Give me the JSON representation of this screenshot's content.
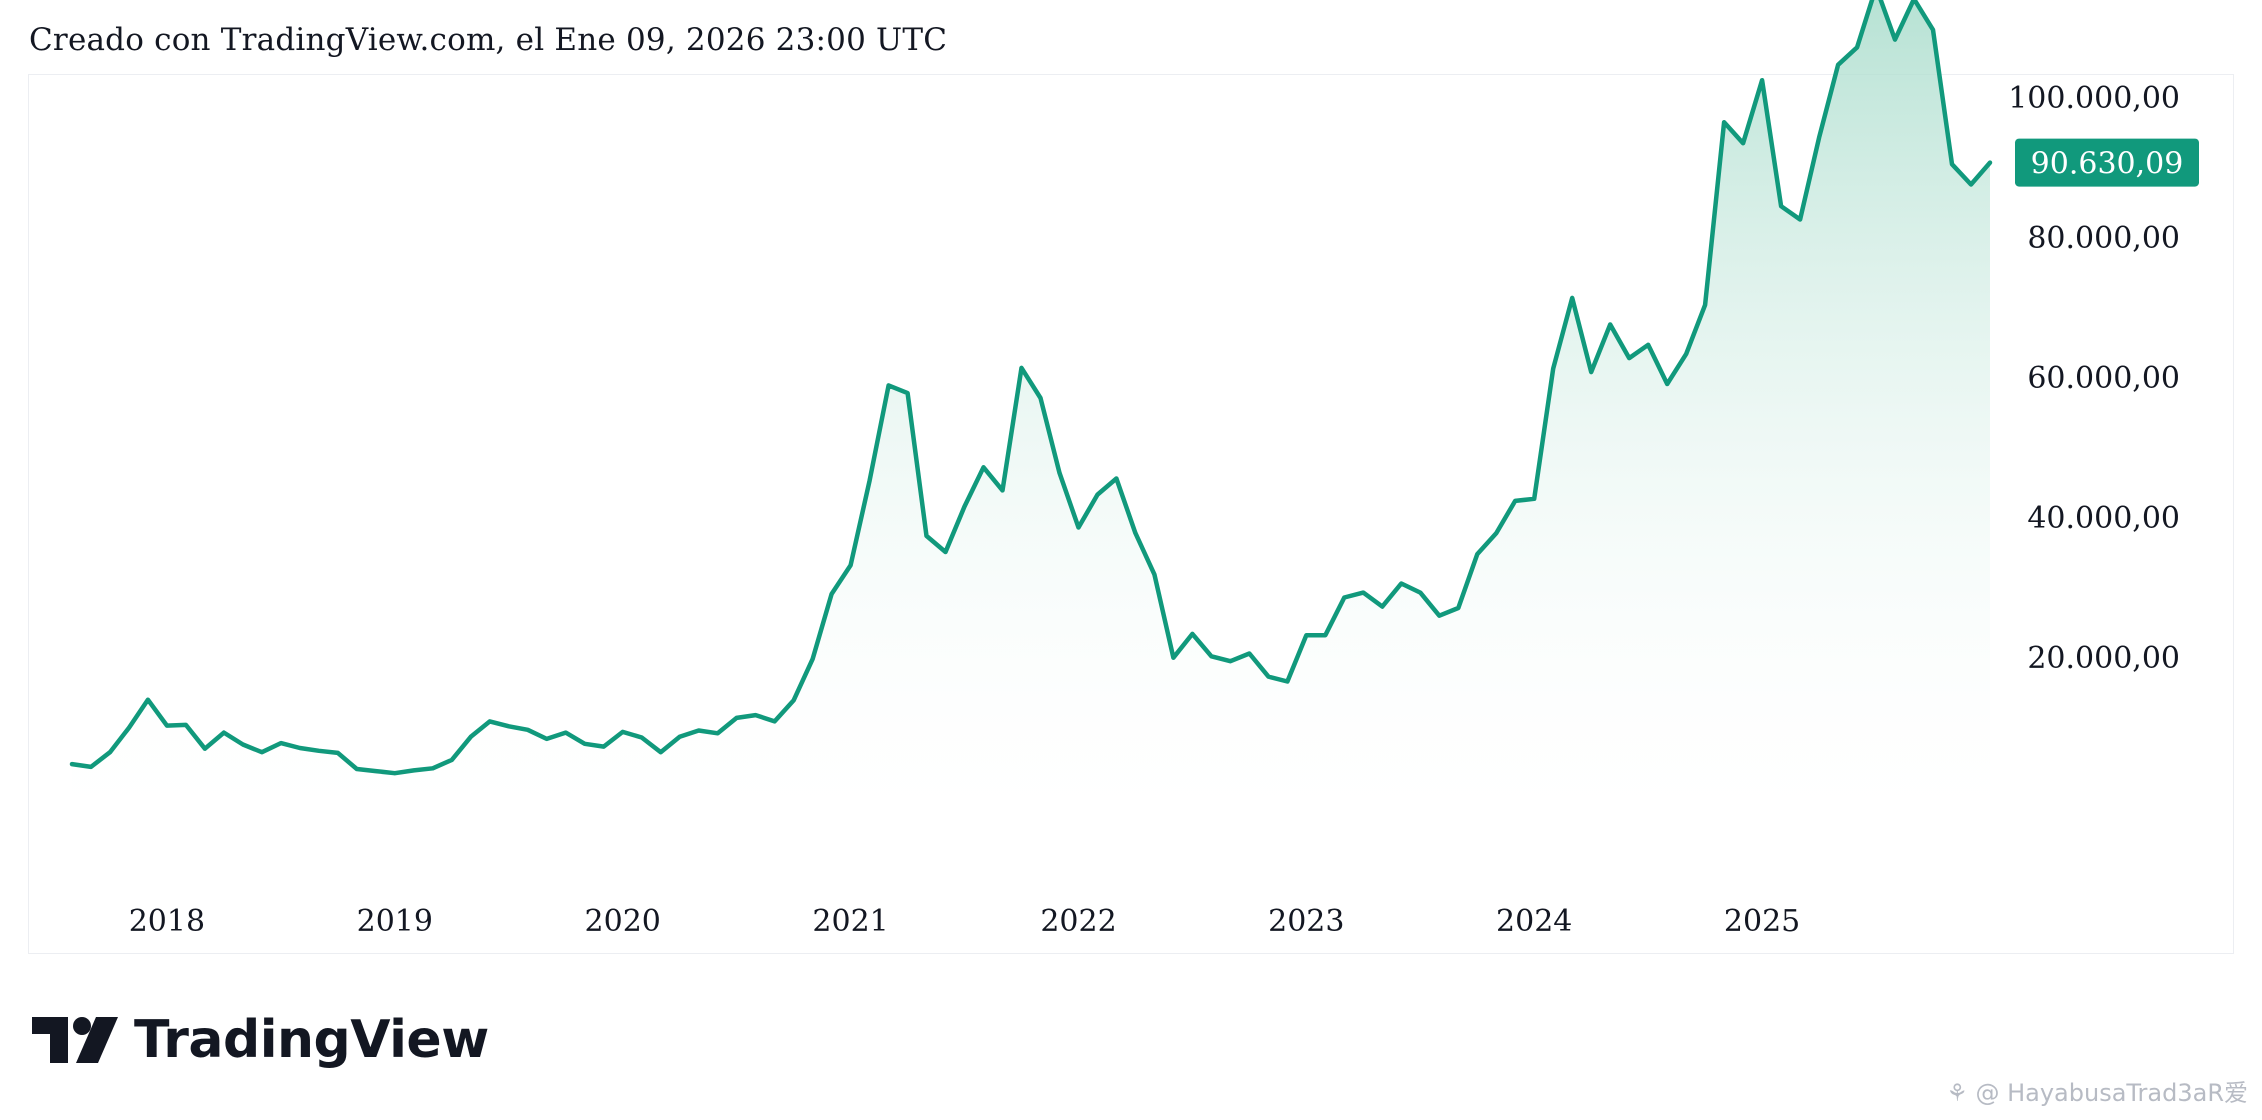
{
  "header": {
    "caption": "Creado con TradingView.com, el Ene 09, 2026 23:00 UTC"
  },
  "brand": {
    "name": "TradingView",
    "logo_icon": "tradingview-logo-icon"
  },
  "watermark": {
    "text": "⚘ @ HayabusaTrad3aR爱"
  },
  "colors": {
    "line": "#11997c",
    "fill_top": "#a8dccb",
    "fill_bottom": "#ffffff",
    "last_label_bg": "#11997c"
  },
  "chart_data": {
    "type": "area",
    "title": "",
    "xlabel": "",
    "ylabel": "",
    "x_ticks": [
      "2018",
      "2019",
      "2020",
      "2021",
      "2022",
      "2023",
      "2024",
      "2025"
    ],
    "y_ticks": [
      "20.000,00",
      "40.000,00",
      "60.000,00",
      "80.000,00",
      "100.000,00"
    ],
    "y_tick_values": [
      20000,
      40000,
      60000,
      80000,
      100000
    ],
    "ylim": [
      -5000,
      117000
    ],
    "xlim": [
      "2017-06",
      "2025-12"
    ],
    "last_value_label": "90.630,09",
    "grid": false,
    "series": [
      {
        "values": [
          [
            "2017-08",
            4700
          ],
          [
            "2017-09",
            4300
          ],
          [
            "2017-10",
            6400
          ],
          [
            "2017-11",
            9900
          ],
          [
            "2017-12",
            13900
          ],
          [
            "2018-01",
            10200
          ],
          [
            "2018-02",
            10300
          ],
          [
            "2018-03",
            6900
          ],
          [
            "2018-04",
            9200
          ],
          [
            "2018-05",
            7500
          ],
          [
            "2018-06",
            6400
          ],
          [
            "2018-07",
            7700
          ],
          [
            "2018-08",
            7000
          ],
          [
            "2018-09",
            6600
          ],
          [
            "2018-10",
            6300
          ],
          [
            "2018-11",
            4000
          ],
          [
            "2018-12",
            3700
          ],
          [
            "2019-01",
            3400
          ],
          [
            "2019-02",
            3800
          ],
          [
            "2019-03",
            4100
          ],
          [
            "2019-04",
            5300
          ],
          [
            "2019-05",
            8600
          ],
          [
            "2019-06",
            10800
          ],
          [
            "2019-07",
            10100
          ],
          [
            "2019-08",
            9600
          ],
          [
            "2019-09",
            8300
          ],
          [
            "2019-10",
            9200
          ],
          [
            "2019-11",
            7600
          ],
          [
            "2019-12",
            7200
          ],
          [
            "2020-01",
            9300
          ],
          [
            "2020-02",
            8500
          ],
          [
            "2020-03",
            6400
          ],
          [
            "2020-04",
            8600
          ],
          [
            "2020-05",
            9500
          ],
          [
            "2020-06",
            9100
          ],
          [
            "2020-07",
            11300
          ],
          [
            "2020-08",
            11700
          ],
          [
            "2020-09",
            10800
          ],
          [
            "2020-10",
            13800
          ],
          [
            "2020-11",
            19700
          ],
          [
            "2020-12",
            29000
          ],
          [
            "2021-01",
            33100
          ],
          [
            "2021-02",
            45200
          ],
          [
            "2021-03",
            58800
          ],
          [
            "2021-04",
            57700
          ],
          [
            "2021-05",
            37300
          ],
          [
            "2021-06",
            35000
          ],
          [
            "2021-07",
            41500
          ],
          [
            "2021-08",
            47100
          ],
          [
            "2021-09",
            43800
          ],
          [
            "2021-10",
            61300
          ],
          [
            "2021-11",
            57000
          ],
          [
            "2021-12",
            46300
          ],
          [
            "2022-01",
            38500
          ],
          [
            "2022-02",
            43200
          ],
          [
            "2022-03",
            45500
          ],
          [
            "2022-04",
            37700
          ],
          [
            "2022-05",
            31800
          ],
          [
            "2022-06",
            19900
          ],
          [
            "2022-07",
            23300
          ],
          [
            "2022-08",
            20100
          ],
          [
            "2022-09",
            19400
          ],
          [
            "2022-10",
            20500
          ],
          [
            "2022-11",
            17200
          ],
          [
            "2022-12",
            16500
          ],
          [
            "2023-01",
            23100
          ],
          [
            "2023-02",
            23100
          ],
          [
            "2023-03",
            28500
          ],
          [
            "2023-04",
            29200
          ],
          [
            "2023-05",
            27200
          ],
          [
            "2023-06",
            30500
          ],
          [
            "2023-07",
            29200
          ],
          [
            "2023-08",
            25900
          ],
          [
            "2023-09",
            27000
          ],
          [
            "2023-10",
            34700
          ],
          [
            "2023-11",
            37700
          ],
          [
            "2023-12",
            42300
          ],
          [
            "2024-01",
            42600
          ],
          [
            "2024-02",
            61200
          ],
          [
            "2024-03",
            71300
          ],
          [
            "2024-04",
            60700
          ],
          [
            "2024-05",
            67500
          ],
          [
            "2024-06",
            62700
          ],
          [
            "2024-07",
            64600
          ],
          [
            "2024-08",
            59000
          ],
          [
            "2024-09",
            63300
          ],
          [
            "2024-10",
            70300
          ],
          [
            "2024-11",
            96400
          ],
          [
            "2024-12",
            93400
          ],
          [
            "2025-01",
            102400
          ],
          [
            "2025-02",
            84400
          ],
          [
            "2025-03",
            82500
          ],
          [
            "2025-04",
            94200
          ],
          [
            "2025-05",
            104600
          ],
          [
            "2025-06",
            107100
          ],
          [
            "2025-07",
            115700
          ],
          [
            "2025-08",
            108200
          ],
          [
            "2025-09",
            114000
          ],
          [
            "2025-10",
            109600
          ],
          [
            "2025-11",
            90400
          ],
          [
            "2025-12",
            87500
          ],
          [
            "2026-01",
            90630
          ]
        ]
      }
    ]
  }
}
